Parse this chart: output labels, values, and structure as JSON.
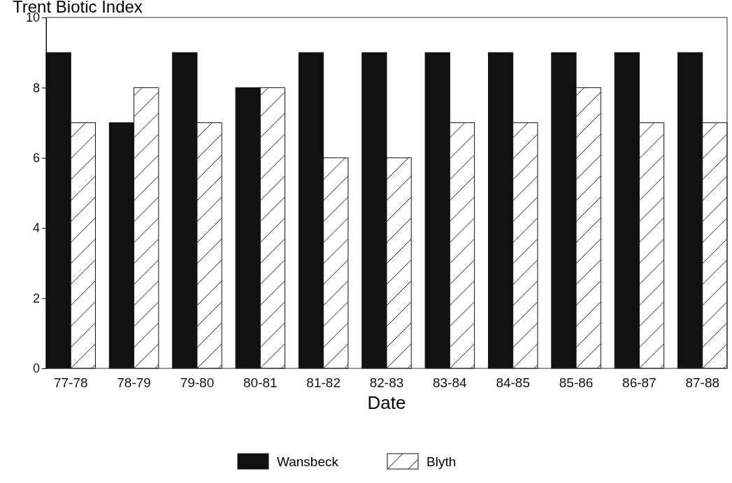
{
  "chart_data": {
    "type": "bar",
    "title": "Trent Biotic Index",
    "xlabel": "Date",
    "categories": [
      "77-78",
      "78-79",
      "79-80",
      "80-81",
      "81-82",
      "82-83",
      "83-84",
      "84-85",
      "85-86",
      "86-87",
      "87-88"
    ],
    "series": [
      {
        "name": "Wansbeck",
        "color": "#111111",
        "values": [
          9,
          7,
          9,
          8,
          9,
          9,
          9,
          9,
          9,
          9,
          9
        ]
      },
      {
        "name": "Blyth",
        "color": "#ffffff",
        "values": [
          7,
          8,
          7,
          8,
          6,
          6,
          7,
          7,
          8,
          7,
          7
        ]
      }
    ],
    "ylim": [
      0,
      10
    ],
    "yticks": [
      0,
      2,
      4,
      6,
      8,
      10
    ],
    "grid": false,
    "legend": "bottom"
  }
}
